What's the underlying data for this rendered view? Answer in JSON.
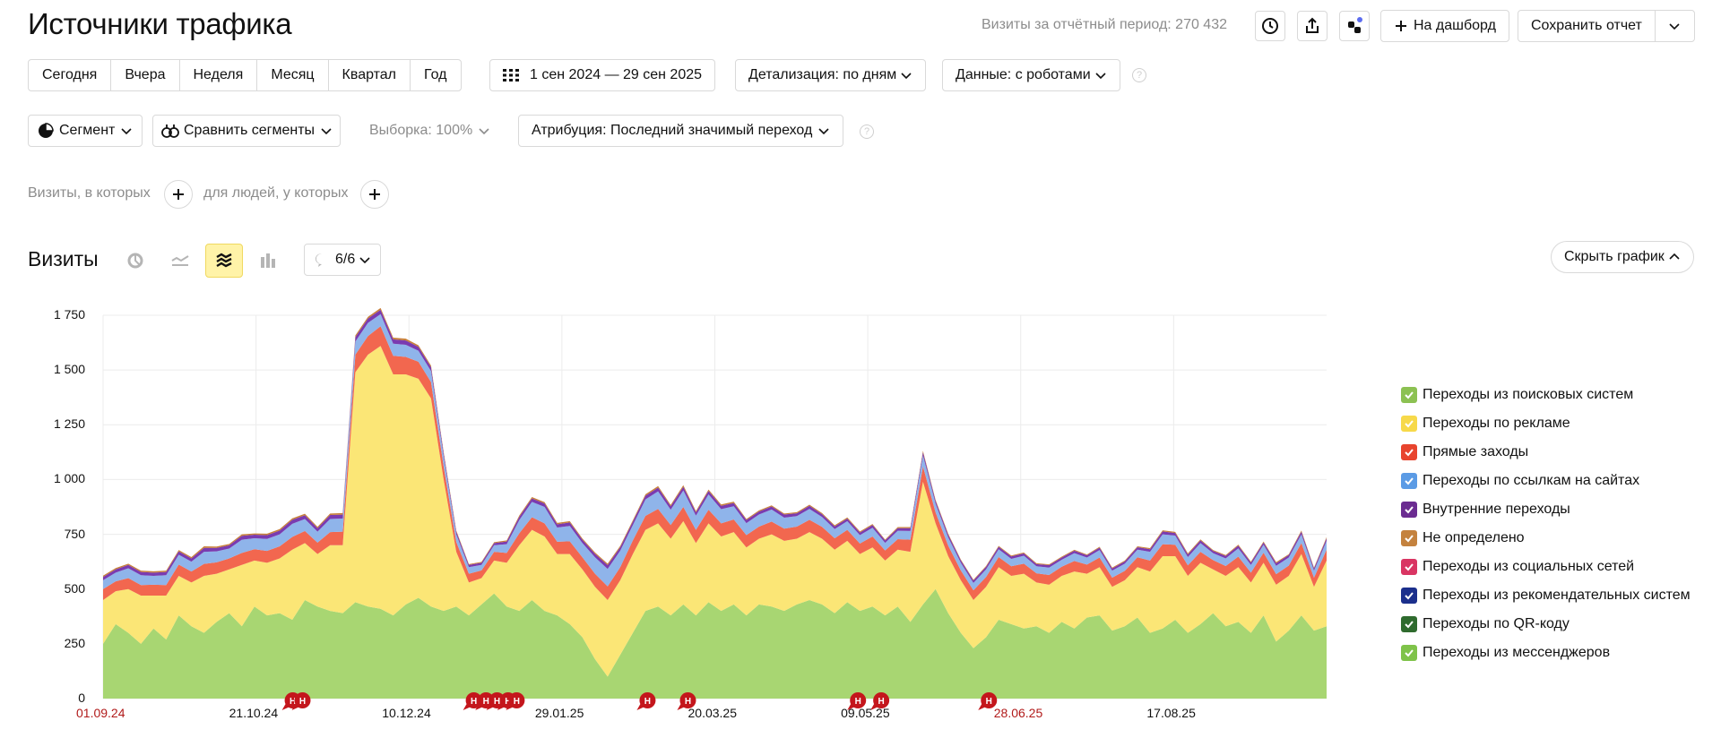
{
  "header": {
    "title": "Источники трафика",
    "visits_period": "Визиты за отчётный период: 270 432",
    "dashboard_label": "На дашборд",
    "save_report_label": "Сохранить отчет"
  },
  "toolbar": {
    "periods": [
      "Сегодня",
      "Вчера",
      "Неделя",
      "Месяц",
      "Квартал",
      "Год"
    ],
    "date_range": "1 сен 2024 — 29 сен 2025",
    "detail": "Детализация: по дням",
    "data": "Данные: с роботами"
  },
  "filters": {
    "segment": "Сегмент",
    "compare": "Сравнить сегменты",
    "sample": "Выборка: 100%",
    "attribution": "Атрибуция: Последний значимый переход"
  },
  "conditions": {
    "visits_where": "Визиты, в которых",
    "people_where": "для людей, у которых"
  },
  "graph": {
    "title": "Визиты",
    "series_count": "6/6",
    "hide_label": "Скрыть график",
    "annotation_letter": "Н"
  },
  "colors": {
    "accent_yellow": "#fff3a8",
    "holiday_red": "#b11a1a"
  },
  "chart_data": {
    "type": "area",
    "stacked": true,
    "ylim": [
      0,
      1750
    ],
    "yticks": [
      "1 750",
      "1 500",
      "1 250",
      "1 000",
      "750",
      "500",
      "250",
      "0"
    ],
    "xticks": [
      {
        "label": "01.09.24",
        "holiday": true
      },
      {
        "label": "21.10.24",
        "holiday": false
      },
      {
        "label": "10.12.24",
        "holiday": false
      },
      {
        "label": "29.01.25",
        "holiday": false
      },
      {
        "label": "20.03.25",
        "holiday": false
      },
      {
        "label": "09.05.25",
        "holiday": false
      },
      {
        "label": "28.06.25",
        "holiday": true
      },
      {
        "label": "17.08.25",
        "holiday": false
      }
    ],
    "grid": true,
    "legend_position": "right",
    "series": [
      {
        "name": "Переходы из поисковых систем",
        "color": "#a8d672",
        "values": [
          250,
          340,
          300,
          250,
          320,
          270,
          380,
          330,
          300,
          350,
          390,
          330,
          420,
          380,
          390,
          360,
          450,
          420,
          400,
          390,
          440,
          420,
          410,
          380,
          430,
          460,
          420,
          400,
          420,
          380,
          430,
          480,
          420,
          400,
          450,
          400,
          380,
          340,
          280,
          180,
          100,
          200,
          300,
          400,
          420,
          380,
          430,
          380,
          440,
          400,
          430,
          380,
          430,
          420,
          400,
          430,
          450,
          430,
          390,
          440,
          400,
          420,
          380,
          420,
          350,
          430,
          500,
          390,
          300,
          230,
          280,
          360,
          340,
          320,
          330,
          300,
          350,
          320,
          370,
          380,
          310,
          330,
          370,
          300,
          320,
          360,
          300,
          340,
          390,
          330,
          350,
          300,
          380,
          260,
          310,
          380,
          310,
          330
        ]
      },
      {
        "name": "Переходы по рекламе",
        "color": "#fbe676",
        "values": [
          200,
          150,
          200,
          220,
          150,
          200,
          180,
          200,
          260,
          220,
          200,
          280,
          210,
          240,
          250,
          320,
          260,
          240,
          300,
          310,
          1050,
          1150,
          1200,
          1100,
          1050,
          1000,
          950,
          600,
          250,
          150,
          120,
          150,
          200,
          300,
          320,
          340,
          280,
          320,
          310,
          330,
          350,
          340,
          360,
          370,
          380,
          350,
          380,
          330,
          360,
          340,
          330,
          310,
          300,
          330,
          320,
          300,
          310,
          300,
          290,
          280,
          260,
          270,
          250,
          260,
          320,
          560,
          300,
          260,
          240,
          220,
          230,
          240,
          220,
          250,
          200,
          220,
          210,
          260,
          200,
          220,
          200,
          210,
          230,
          280,
          330,
          290,
          260,
          280,
          200,
          230,
          250,
          230,
          240,
          260,
          250,
          280,
          200,
          300
        ]
      },
      {
        "name": "Прямые заходы",
        "color": "#f2674f",
        "values": [
          50,
          45,
          50,
          48,
          50,
          48,
          52,
          50,
          55,
          52,
          50,
          55,
          52,
          54,
          55,
          58,
          55,
          52,
          60,
          62,
          80,
          85,
          90,
          85,
          80,
          78,
          75,
          60,
          45,
          40,
          35,
          40,
          45,
          55,
          58,
          60,
          56,
          58,
          55,
          60,
          62,
          60,
          62,
          64,
          66,
          62,
          65,
          60,
          62,
          60,
          58,
          56,
          55,
          58,
          56,
          55,
          56,
          54,
          52,
          50,
          48,
          50,
          46,
          48,
          55,
          70,
          50,
          48,
          45,
          44,
          45,
          46,
          44,
          46,
          42,
          44,
          42,
          48,
          42,
          44,
          42,
          43,
          45,
          50,
          55,
          52,
          48,
          50,
          42,
          45,
          48,
          45,
          46,
          48,
          47,
          50,
          42,
          50
        ]
      },
      {
        "name": "Переходы по ссылкам на сайтах",
        "color": "#8fb4ea",
        "values": [
          40,
          40,
          45,
          45,
          40,
          45,
          45,
          45,
          55,
          50,
          45,
          60,
          50,
          55,
          55,
          60,
          55,
          50,
          60,
          60,
          60,
          60,
          55,
          55,
          55,
          50,
          50,
          45,
          35,
          30,
          25,
          30,
          40,
          60,
          70,
          75,
          65,
          70,
          65,
          75,
          80,
          75,
          70,
          75,
          80,
          70,
          75,
          65,
          70,
          65,
          60,
          55,
          55,
          55,
          50,
          48,
          50,
          45,
          42,
          40,
          38,
          40,
          35,
          38,
          40,
          50,
          40,
          38,
          35,
          34,
          35,
          36,
          34,
          36,
          32,
          34,
          32,
          36,
          32,
          34,
          32,
          33,
          35,
          40,
          45,
          42,
          38,
          40,
          32,
          35,
          38,
          35,
          36,
          38,
          37,
          40,
          32,
          40
        ]
      },
      {
        "name": "Внутренние переходы",
        "color": "#7a3bb0",
        "values": [
          15,
          15,
          15,
          15,
          15,
          15,
          15,
          15,
          18,
          16,
          15,
          18,
          16,
          17,
          17,
          18,
          17,
          16,
          18,
          18,
          20,
          20,
          20,
          20,
          20,
          18,
          18,
          15,
          12,
          10,
          10,
          10,
          12,
          15,
          16,
          16,
          15,
          16,
          15,
          16,
          17,
          16,
          16,
          17,
          17,
          16,
          17,
          15,
          16,
          15,
          15,
          14,
          14,
          14,
          14,
          13,
          14,
          13,
          12,
          12,
          12,
          12,
          11,
          12,
          13,
          15,
          12,
          12,
          11,
          11,
          11,
          11,
          11,
          11,
          10,
          11,
          10,
          11,
          10,
          11,
          10,
          10,
          11,
          12,
          13,
          12,
          12,
          12,
          10,
          11,
          12,
          11,
          11,
          12,
          11,
          12,
          10,
          12
        ]
      },
      {
        "name": "Не определено",
        "color": "#c77f3a",
        "values": [
          6,
          6,
          6,
          6,
          6,
          6,
          6,
          6,
          7,
          6,
          6,
          7,
          6,
          7,
          7,
          7,
          7,
          6,
          7,
          7,
          8,
          8,
          8,
          8,
          8,
          7,
          7,
          6,
          5,
          4,
          4,
          4,
          5,
          6,
          6,
          6,
          6,
          6,
          6,
          6,
          7,
          6,
          6,
          7,
          7,
          6,
          7,
          6,
          6,
          6,
          6,
          5,
          5,
          5,
          5,
          5,
          5,
          5,
          5,
          5,
          5,
          5,
          4,
          5,
          5,
          6,
          5,
          5,
          4,
          4,
          4,
          4,
          4,
          4,
          4,
          4,
          4,
          4,
          4,
          4,
          4,
          4,
          4,
          5,
          5,
          5,
          5,
          5,
          4,
          4,
          5,
          4,
          4,
          5,
          4,
          5,
          4,
          5
        ]
      }
    ],
    "legend": [
      {
        "name": "Переходы из поисковых систем",
        "color": "#8cc152"
      },
      {
        "name": "Переходы по рекламе",
        "color": "#f7d94a"
      },
      {
        "name": "Прямые заходы",
        "color": "#e8442e"
      },
      {
        "name": "Переходы по ссылкам на сайтах",
        "color": "#5b9be5"
      },
      {
        "name": "Внутренние переходы",
        "color": "#6b2c91"
      },
      {
        "name": "Не определено",
        "color": "#c4823e"
      },
      {
        "name": "Переходы из социальных сетей",
        "color": "#d93563"
      },
      {
        "name": "Переходы из рекомендательных систем",
        "color": "#1b2f8c"
      },
      {
        "name": "Переходы по QR-коду",
        "color": "#2f6b2e"
      },
      {
        "name": "Переходы из мессенджеров",
        "color": "#7fc34a"
      }
    ]
  }
}
